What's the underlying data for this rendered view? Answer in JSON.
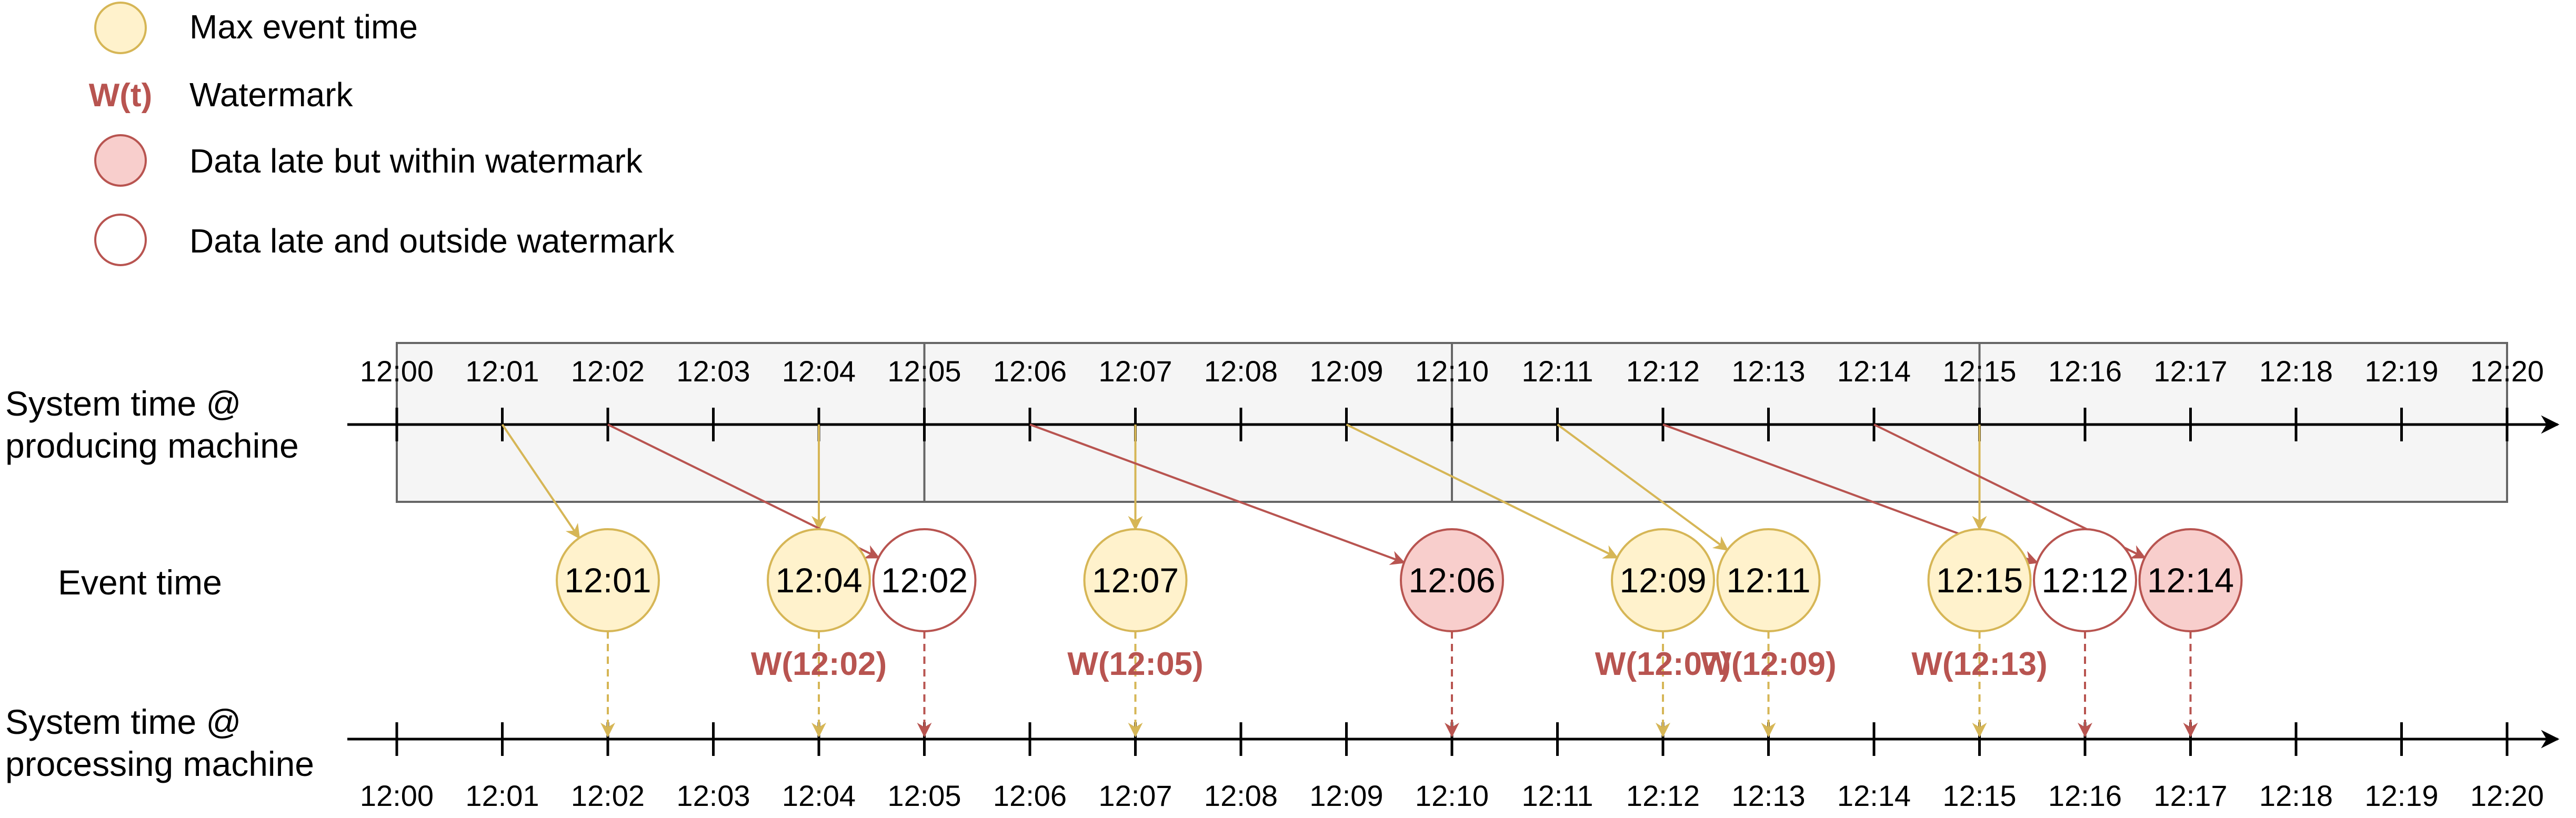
{
  "legend": {
    "items": [
      {
        "symbol": "max-event",
        "label": "Max event time"
      },
      {
        "symbol": "watermark",
        "symbol_text": "W(t)",
        "label": "Watermark"
      },
      {
        "symbol": "late-within",
        "label": "Data late but within watermark"
      },
      {
        "symbol": "late-outside",
        "label": "Data late and outside watermark"
      }
    ]
  },
  "rows": {
    "producing": [
      "System time @",
      "producing machine"
    ],
    "event": "Event time",
    "processing": [
      "System time @",
      "processing machine"
    ]
  },
  "ticks": [
    "12:00",
    "12:01",
    "12:02",
    "12:03",
    "12:04",
    "12:05",
    "12:06",
    "12:07",
    "12:08",
    "12:09",
    "12:10",
    "12:11",
    "12:12",
    "12:13",
    "12:14",
    "12:15",
    "12:16",
    "12:17",
    "12:18",
    "12:19",
    "12:20"
  ],
  "windows": [
    [
      0,
      5
    ],
    [
      5,
      10
    ],
    [
      10,
      15
    ],
    [
      15,
      20
    ]
  ],
  "events": [
    {
      "label": "12:01",
      "kind": "max",
      "slot": 2,
      "from": 1,
      "to": 2,
      "watermark": ""
    },
    {
      "label": "12:04",
      "kind": "max",
      "slot": 4,
      "from": 4,
      "to": 4,
      "watermark": "W(12:02)"
    },
    {
      "label": "12:02",
      "kind": "outside",
      "slot": 5,
      "from": 2,
      "to": 5,
      "watermark": ""
    },
    {
      "label": "12:07",
      "kind": "max",
      "slot": 7,
      "from": 7,
      "to": 7,
      "watermark": "W(12:05)"
    },
    {
      "label": "12:06",
      "kind": "within",
      "slot": 10,
      "from": 6,
      "to": 10,
      "watermark": ""
    },
    {
      "label": "12:09",
      "kind": "max",
      "slot": 12,
      "from": 9,
      "to": 12,
      "watermark": "W(12:07)"
    },
    {
      "label": "12:11",
      "kind": "max",
      "slot": 13,
      "from": 11,
      "to": 13,
      "watermark": "W(12:09)"
    },
    {
      "label": "12:15",
      "kind": "max",
      "slot": 15,
      "from": 15,
      "to": 15,
      "watermark": "W(12:13)"
    },
    {
      "label": "12:12",
      "kind": "outside",
      "slot": 16,
      "from": 12,
      "to": 16,
      "watermark": ""
    },
    {
      "label": "12:14",
      "kind": "within",
      "slot": 17,
      "from": 14,
      "to": 17,
      "watermark": ""
    }
  ],
  "colors": {
    "max_fill": "#fff2cc",
    "max_stroke": "#d6b656",
    "within_fill": "#f8cecc",
    "within_stroke": "#b85450",
    "outside_fill": "#ffffff",
    "outside_stroke": "#b85450",
    "watermark_text": "#b85450",
    "window_fill": "#f5f5f5",
    "window_stroke": "#666666",
    "axis": "#000000"
  }
}
